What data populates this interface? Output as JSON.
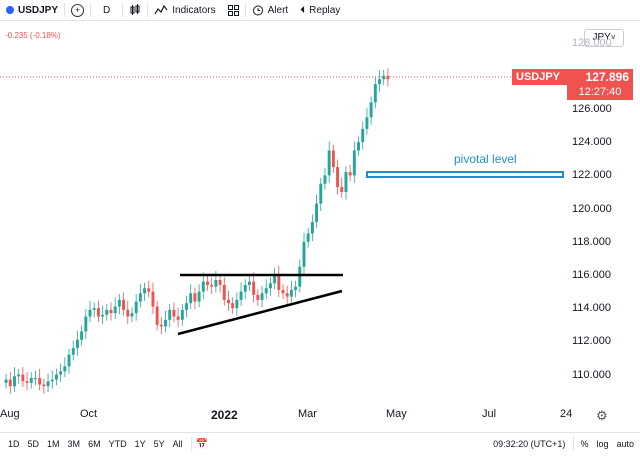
{
  "toolbar": {
    "symbol": "USDJPY",
    "add_icon": "+",
    "interval": "D",
    "indicators_label": "Indicators",
    "alert_label": "Alert",
    "replay_label": "Replay"
  },
  "chart": {
    "change_text": "-0.235 (-0.18%)",
    "currency": "JPY",
    "last_price": "127.896",
    "symbol_tag": "USDJPY",
    "countdown": "12:27:40",
    "annotation": "pivotal level",
    "y_ticks": [
      "128.000",
      "126.000",
      "124.000",
      "122.000",
      "120.000",
      "118.000",
      "116.000",
      "114.000",
      "112.000",
      "110.000"
    ],
    "x_ticks": [
      "Aug",
      "Oct",
      "2022",
      "Mar",
      "May",
      "Jul",
      "24"
    ]
  },
  "chart_data": {
    "type": "candlestick",
    "series": [
      {
        "values": [
          109.7,
          109.3,
          109.9,
          110.0,
          109.6,
          109.5,
          109.8,
          109.8,
          109.4,
          109.3,
          109.6,
          109.7,
          110.0,
          110.2,
          110.5,
          111.2,
          111.6,
          112.1,
          112.6,
          113.5,
          113.9,
          114.0,
          113.5,
          113.6,
          113.9,
          113.7,
          114.1,
          114.5,
          113.9,
          113.5,
          113.7,
          114.4,
          114.9,
          115.2,
          115.0,
          114.1,
          113.0,
          112.9,
          113.3,
          113.9,
          113.5,
          113.3,
          113.9,
          114.3,
          114.9,
          114.4,
          115.0,
          115.6,
          115.4,
          115.3,
          115.7,
          115.4,
          114.5,
          114.3,
          114.0,
          114.5,
          115.0,
          115.4,
          115.6,
          114.8,
          114.5,
          114.9,
          115.2,
          115.5,
          116.0,
          115.1,
          114.9,
          114.7,
          115.1,
          115.3,
          116.5,
          118.0,
          118.5,
          119.2,
          120.3,
          121.5,
          122.0,
          123.5,
          122.5,
          121.3,
          121.0,
          122.2,
          122.0,
          123.5,
          124.0,
          124.8,
          125.5,
          126.4,
          127.5,
          127.8,
          128.0,
          127.8
        ]
      }
    ],
    "pivot_level": 122.0,
    "ylim": [
      109.0,
      129.0
    ]
  }
}
